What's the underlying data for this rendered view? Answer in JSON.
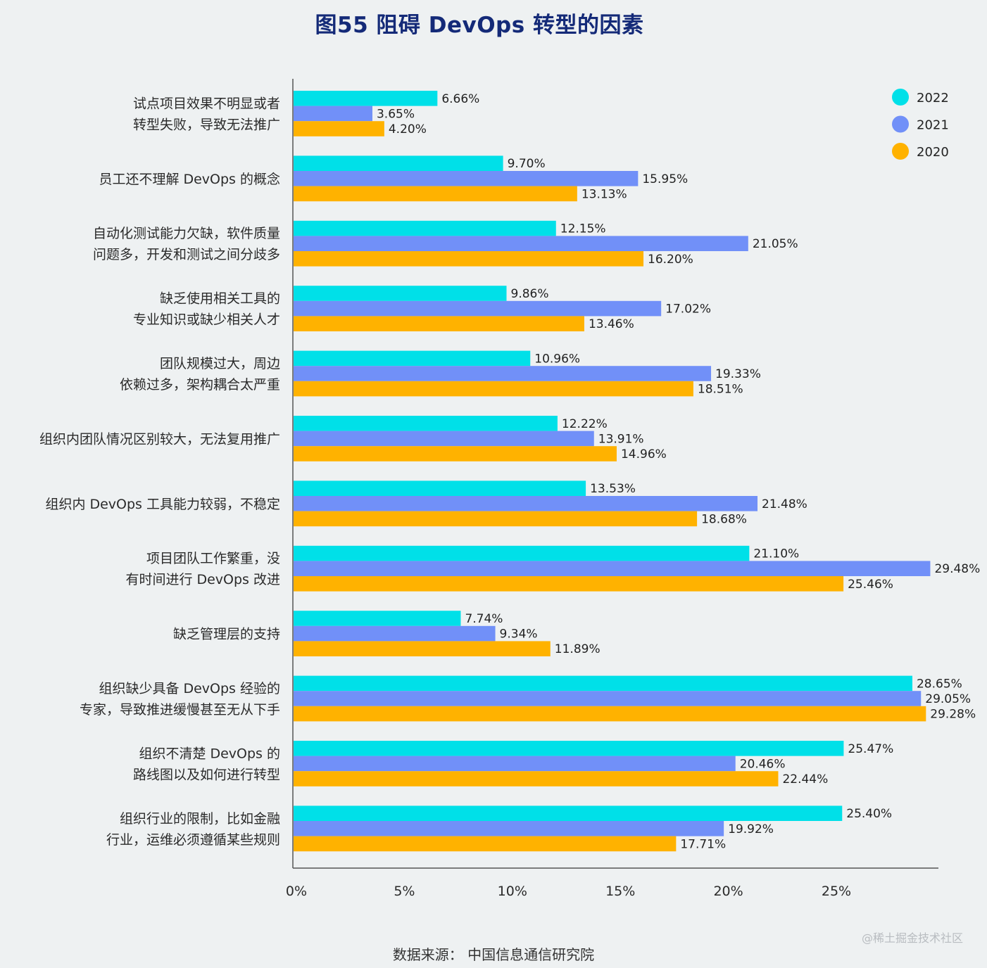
{
  "chart_data": {
    "type": "bar",
    "orientation": "horizontal",
    "title": "图55 阻碍 DevOps 转型的因素",
    "categories": [
      [
        "试点项目效果不明显或者",
        "转型失败，导致无法推广"
      ],
      [
        "员工还不理解 DevOps 的概念"
      ],
      [
        "自动化测试能力欠缺，软件质量",
        "问题多，开发和测试之间分歧多"
      ],
      [
        "缺乏使用相关工具的",
        "专业知识或缺少相关人才"
      ],
      [
        "团队规模过大，周边",
        "依赖过多，架构耦合太严重"
      ],
      [
        "组织内团队情况区别较大，无法复用推广"
      ],
      [
        "组织内 DevOps 工具能力较弱，不稳定"
      ],
      [
        "项目团队工作繁重，没",
        "有时间进行 DevOps 改进"
      ],
      [
        "缺乏管理层的支持"
      ],
      [
        "组织缺少具备 DevOps 经验的",
        "专家，导致推进缓慢甚至无从下手"
      ],
      [
        "组织不清楚 DevOps 的",
        "路线图以及如何进行转型"
      ],
      [
        "组织行业的限制，比如金融",
        "行业，运维必须遵循某些规则"
      ]
    ],
    "series": [
      {
        "name": "2022",
        "color": "#00e0e8",
        "values": [
          6.66,
          9.7,
          12.15,
          9.86,
          10.96,
          12.22,
          13.53,
          21.1,
          7.74,
          28.65,
          25.47,
          25.4
        ],
        "labels": [
          "6.66%",
          "9.70%",
          "12.15%",
          "9.86%",
          "10.96%",
          "12.22%",
          "13.53%",
          "21.10%",
          "7.74%",
          "28.65%",
          "25.47%",
          "25.40%"
        ]
      },
      {
        "name": "2021",
        "color": "#7190f8",
        "values": [
          3.65,
          15.95,
          21.05,
          17.02,
          19.33,
          13.91,
          21.48,
          29.48,
          9.34,
          29.05,
          20.46,
          19.92
        ],
        "labels": [
          "3.65%",
          "15.95%",
          "21.05%",
          "17.02%",
          "19.33%",
          "13.91%",
          "21.48%",
          "29.48%",
          "9.34%",
          "29.05%",
          "20.46%",
          "19.92%"
        ]
      },
      {
        "name": "2020",
        "color": "#ffb200",
        "values": [
          4.2,
          13.13,
          16.2,
          13.46,
          18.51,
          14.96,
          18.68,
          25.46,
          11.89,
          29.28,
          22.44,
          17.71
        ],
        "labels": [
          "4.20%",
          "13.13%",
          "16.20%",
          "13.46%",
          "18.51%",
          "14.96%",
          "18.68%",
          "25.46%",
          "11.89%",
          "29.28%",
          "22.44%",
          "17.71%"
        ]
      }
    ],
    "xlim": [
      0,
      30
    ],
    "xticks": [
      0,
      5,
      10,
      15,
      20,
      25
    ],
    "xtick_labels": [
      "0%",
      "5%",
      "10%",
      "15%",
      "20%",
      "25%"
    ],
    "legend_position": "top-right",
    "grid": false,
    "source": "数据来源：  中国信息通信研究院"
  },
  "watermark": "@稀土掘金技术社区"
}
